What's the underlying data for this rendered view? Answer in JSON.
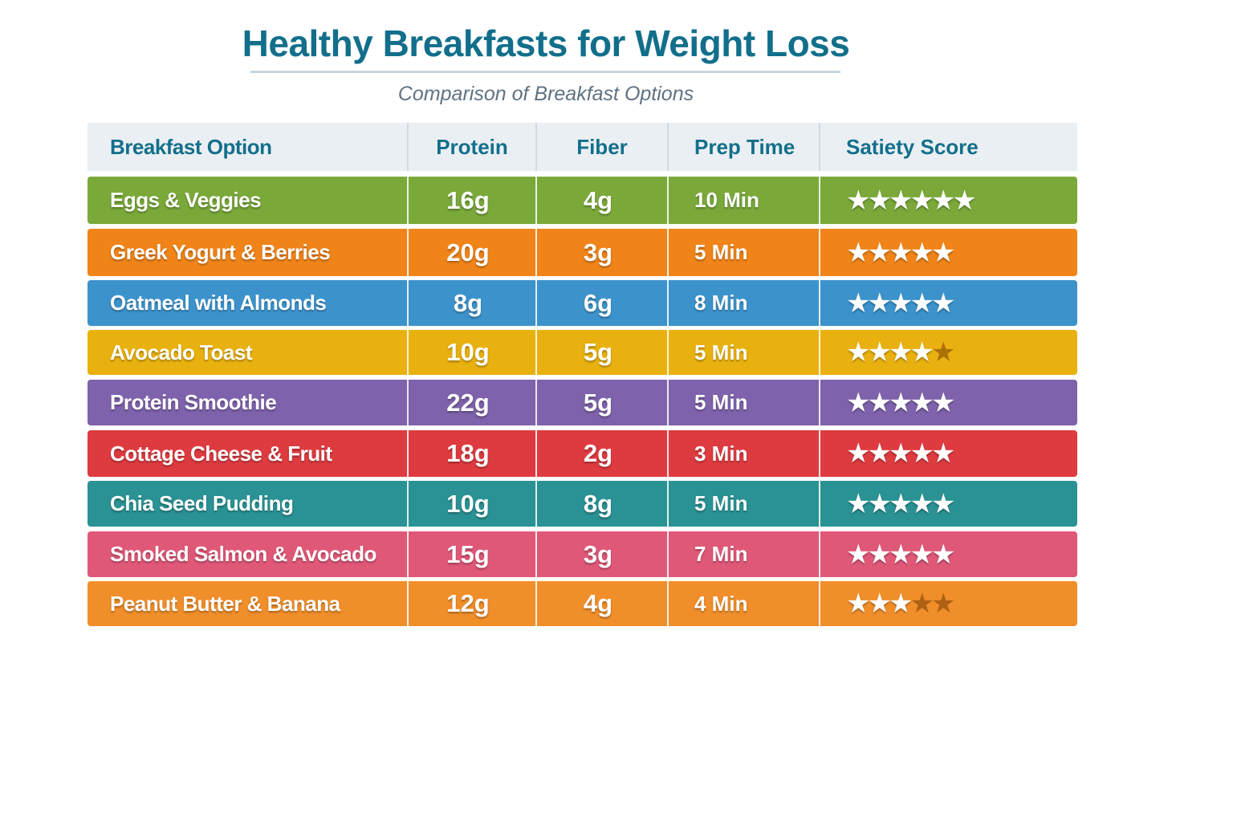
{
  "title": "Healthy Breakfasts for Weight Loss",
  "subtitle": "Comparison of Breakfast Options",
  "chart_data": {
    "type": "table",
    "columns": [
      "Breakfast Option",
      "Protein",
      "Fiber",
      "Prep Time",
      "Satiety Score"
    ],
    "rows": [
      {
        "option": "Eggs & Veggies",
        "protein": "16g",
        "fiber": "4g",
        "prep": "10 Min",
        "satiety": 6,
        "max": 6,
        "color": "#7aa93a"
      },
      {
        "option": "Greek Yogurt & Berries",
        "protein": "20g",
        "fiber": "3g",
        "prep": "5 Min",
        "satiety": 5,
        "max": 5,
        "color": "#f08419"
      },
      {
        "option": "Oatmeal with Almonds",
        "protein": "8g",
        "fiber": "6g",
        "prep": "8 Min",
        "satiety": 5,
        "max": 5,
        "color": "#3c93cc"
      },
      {
        "option": "Avocado Toast",
        "protein": "10g",
        "fiber": "5g",
        "prep": "5 Min",
        "satiety": 4,
        "max": 5,
        "color": "#e9b10f"
      },
      {
        "option": "Protein Smoothie",
        "protein": "22g",
        "fiber": "5g",
        "prep": "5 Min",
        "satiety": 5,
        "max": 5,
        "color": "#7e62ab"
      },
      {
        "option": "Cottage Cheese & Fruit",
        "protein": "18g",
        "fiber": "2g",
        "prep": "3 Min",
        "satiety": 5,
        "max": 5,
        "color": "#de3b40"
      },
      {
        "option": "Chia Seed Pudding",
        "protein": "10g",
        "fiber": "8g",
        "prep": "5 Min",
        "satiety": 5,
        "max": 5,
        "color": "#2a9294"
      },
      {
        "option": "Smoked Salmon & Avocado",
        "protein": "15g",
        "fiber": "3g",
        "prep": "7 Min",
        "satiety": 5,
        "max": 5,
        "color": "#e05878"
      },
      {
        "option": "Peanut Butter & Banana",
        "protein": "12g",
        "fiber": "4g",
        "prep": "4 Min",
        "satiety": 3,
        "max": 5,
        "color": "#f08e2a"
      }
    ]
  }
}
